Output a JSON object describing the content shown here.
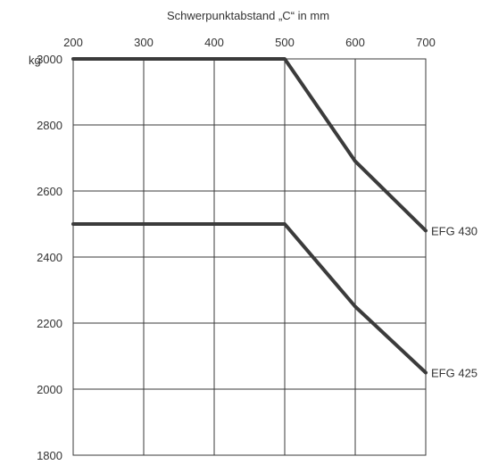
{
  "chart_data": {
    "type": "line",
    "title": "Schwerpunktabstand „C“ in mm",
    "y_unit": "kg",
    "xlim": [
      200,
      700
    ],
    "ylim": [
      1800,
      3000
    ],
    "x_ticks": [
      "200",
      "300",
      "400",
      "500",
      "600",
      "700"
    ],
    "y_ticks": [
      "3000",
      "2800",
      "2600",
      "2400",
      "2200",
      "2000",
      "1800"
    ],
    "grid": true,
    "x_axis_position": "top",
    "series": [
      {
        "name": "EFG 430",
        "x": [
          200,
          500,
          600,
          700
        ],
        "y": [
          3000,
          3000,
          2690,
          2480
        ]
      },
      {
        "name": "EFG 425",
        "x": [
          200,
          500,
          600,
          700
        ],
        "y": [
          2500,
          2500,
          2250,
          2050
        ]
      }
    ],
    "line_color": "#3b3b3b"
  }
}
